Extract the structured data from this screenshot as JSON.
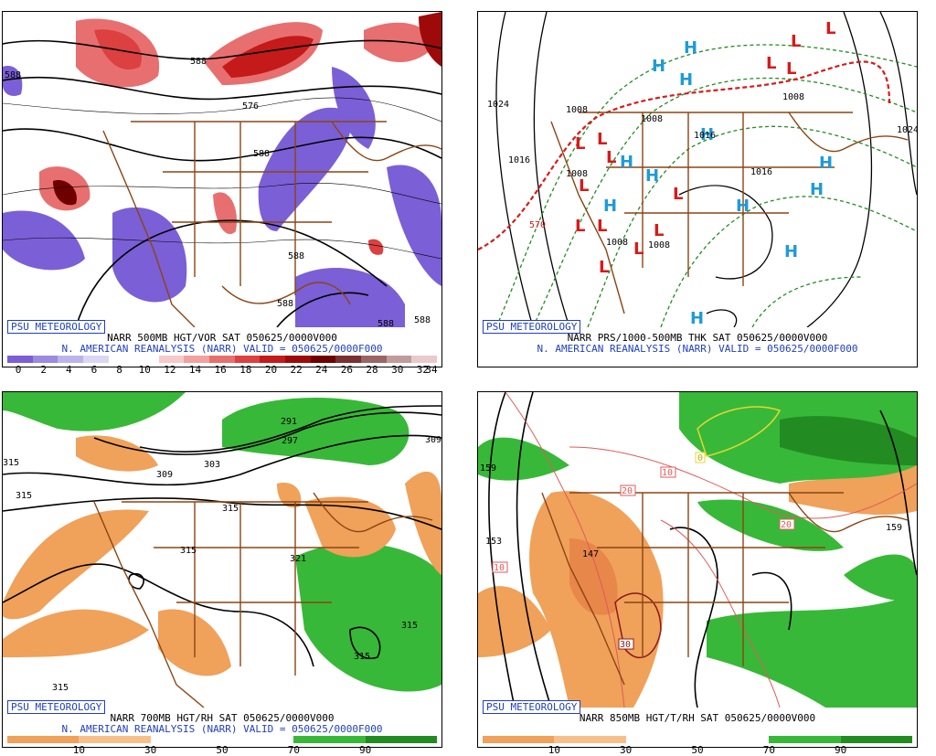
{
  "panels": [
    {
      "logo": "PSU METEOROLOGY",
      "line1": "NARR 500MB HGT/VOR SAT 050625/0000V000",
      "line2": "N. AMERICAN REANALYSIS (NARR) VALID = 050625/0000F000",
      "colorbar": {
        "colors": [
          "#7b5fd6",
          "#9b8ae0",
          "#bcb3eb",
          "#dcd6f5",
          "#ffffff",
          "#ffffff",
          "#f9c9c9",
          "#f2a0a0",
          "#e86f6f",
          "#dc4040",
          "#c41a1a",
          "#9e0a0a",
          "#700000",
          "#7a3030",
          "#9b6565",
          "#c29a9a",
          "#e8caca"
        ],
        "ticks": [
          "0",
          "2",
          "4",
          "6",
          "8",
          "10",
          "12",
          "14",
          "16",
          "18",
          "20",
          "22",
          "24",
          "26",
          "28",
          "30",
          "32",
          "34"
        ]
      },
      "contour_labels": [
        "588",
        "576",
        "588",
        "588",
        "588",
        "588",
        "588",
        "588"
      ]
    },
    {
      "logo": "PSU METEOROLOGY",
      "line1": "NARR PRS/1000-500MB THK SAT 050625/0000V000",
      "line2": "N. AMERICAN REANALYSIS (NARR) VALID = 050625/0000F000",
      "contour_labels": [
        "1024",
        "1016",
        "1008",
        "1008",
        "1008",
        "1008",
        "1008",
        "1016",
        "1016",
        "1024",
        "1008",
        "570"
      ],
      "highs": [
        "H",
        "H",
        "H",
        "H",
        "H",
        "H",
        "H",
        "H",
        "H",
        "H",
        "H",
        "H"
      ],
      "lows": [
        "L",
        "L",
        "L",
        "L",
        "L",
        "L",
        "L",
        "L",
        "L",
        "L",
        "L",
        "L",
        "L",
        "L"
      ]
    },
    {
      "logo": "PSU METEOROLOGY",
      "line1": "NARR 700MB HGT/RH SAT 050625/0000V000",
      "line2": "N. AMERICAN REANALYSIS (NARR) VALID = 050625/0000F000",
      "colorbar": {
        "colors": [
          "#f0a15a",
          "#f7c08a",
          "#ffffff",
          "#ffffff",
          "#38b838",
          "#228b22"
        ],
        "ticks": [
          "10",
          "30",
          "50",
          "70",
          "90"
        ]
      },
      "contour_labels": [
        "315",
        "309",
        "303",
        "297",
        "291",
        "315",
        "315",
        "321",
        "315",
        "315",
        "309",
        "315",
        "321",
        "315"
      ]
    },
    {
      "logo": "PSU METEOROLOGY",
      "line1": "NARR 850MB HGT/T/RH SAT 050625/0000V000",
      "colorbar": {
        "colors": [
          "#f0a15a",
          "#f7c08a",
          "#ffffff",
          "#ffffff",
          "#38b838",
          "#228b22"
        ],
        "ticks": [
          "10",
          "30",
          "50",
          "70",
          "90"
        ]
      },
      "contour_labels": [
        "159",
        "153",
        "147",
        "159",
        "159"
      ],
      "temp_labels": [
        "10",
        "20",
        "20",
        "30",
        "10",
        "0"
      ]
    }
  ]
}
